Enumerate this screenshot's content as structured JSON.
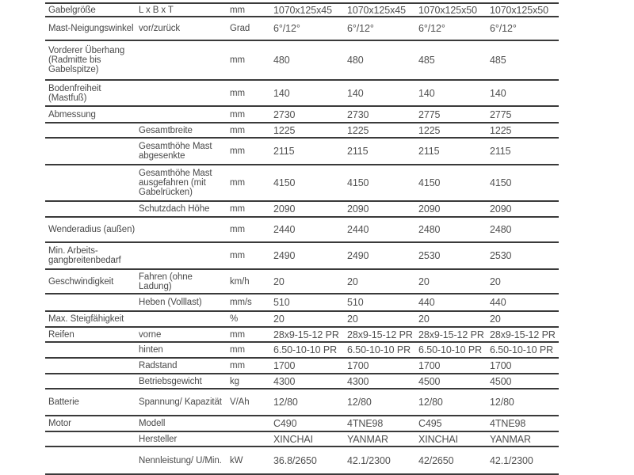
{
  "rows": [
    {
      "label": "Gabelgröße",
      "sub": "L x B x T",
      "unit": "mm",
      "values": [
        "1070x125x45",
        "1070x125x45",
        "1070x125x50",
        "1070x125x50"
      ]
    },
    {
      "label": "Mast-Neigungswinkel",
      "sub": "vor/zurück",
      "unit": "Grad",
      "values": [
        "6°/12°",
        "6°/12°",
        "6°/12°",
        "6°/12°"
      ]
    },
    {
      "label": "Vorderer Überhang (Radmitte bis Gabelspitze)",
      "sub": "",
      "unit": "mm",
      "values": [
        "480",
        "480",
        "485",
        "485"
      ]
    },
    {
      "label": "Bodenfreiheit (Mastfuß)",
      "sub": "",
      "unit": "mm",
      "values": [
        "140",
        "140",
        "140",
        "140"
      ]
    },
    {
      "label": "Abmessung",
      "sub": "",
      "unit": "mm",
      "values": [
        "2730",
        "2730",
        "2775",
        "2775"
      ]
    },
    {
      "label": "",
      "sub": "Gesamtbreite",
      "unit": "mm",
      "values": [
        "1225",
        "1225",
        "1225",
        "1225"
      ]
    },
    {
      "label": "",
      "sub": "Gesamthöhe Mast abgesenkte",
      "unit": "mm",
      "values": [
        "2115",
        "2115",
        "2115",
        "2115"
      ]
    },
    {
      "label": "",
      "sub": "Gesamthöhe Mast ausgefahren (mit Gabelrücken)",
      "unit": "mm",
      "values": [
        "4150",
        "4150",
        "4150",
        "4150"
      ]
    },
    {
      "label": "",
      "sub": "Schutzdach Höhe",
      "unit": "mm",
      "values": [
        "2090",
        "2090",
        "2090",
        "2090"
      ]
    },
    {
      "label": "Wenderadius (außen)",
      "sub": "",
      "unit": "mm",
      "values": [
        "2440",
        "2440",
        "2480",
        "2480"
      ]
    },
    {
      "label": "Min. Arbeits-gangbreitenbedarf",
      "sub": "",
      "unit": "mm",
      "values": [
        "2490",
        "2490",
        "2530",
        "2530"
      ]
    },
    {
      "label": "Geschwindigkeit",
      "sub": "Fahren (ohne Ladung)",
      "unit": "km/h",
      "values": [
        "20",
        "20",
        "20",
        "20"
      ]
    },
    {
      "label": "",
      "sub": "Heben (Volllast)",
      "unit": "mm/s",
      "values": [
        "510",
        "510",
        "440",
        "440"
      ]
    },
    {
      "label": "Max. Steigfähigkeit",
      "sub": "",
      "unit": "%",
      "values": [
        "20",
        "20",
        "20",
        "20"
      ]
    },
    {
      "label": "Reifen",
      "sub": "vorne",
      "unit": "mm",
      "values": [
        "28x9-15-12 PR",
        "28x9-15-12 PR",
        "28x9-15-12 PR",
        "28x9-15-12 PR"
      ]
    },
    {
      "label": "",
      "sub": "hinten",
      "unit": "mm",
      "values": [
        "6.50-10-10 PR",
        "6.50-10-10 PR",
        "6.50-10-10 PR",
        "6.50-10-10 PR"
      ]
    },
    {
      "label": "",
      "sub": "Radstand",
      "unit": "mm",
      "values": [
        "1700",
        "1700",
        "1700",
        "1700"
      ]
    },
    {
      "label": "",
      "sub": "Betriebsgewicht",
      "unit": "kg",
      "values": [
        "4300",
        "4300",
        "4500",
        "4500"
      ]
    },
    {
      "label": "Batterie",
      "sub": "Spannung/ Kapazität",
      "unit": "V/Ah",
      "values": [
        "12/80",
        "12/80",
        "12/80",
        "12/80"
      ]
    },
    {
      "label": "Motor",
      "sub": "Modell",
      "unit": "",
      "values": [
        "C490",
        "4TNE98",
        "C495",
        "4TNE98"
      ]
    },
    {
      "label": "",
      "sub": "Hersteller",
      "unit": "",
      "values": [
        "XINCHAI",
        "YANMAR",
        "XINCHAI",
        "YANMAR"
      ]
    },
    {
      "label": "",
      "sub": "Nennleistung/ U/Min.",
      "unit": "kW",
      "values": [
        "36.8/2650",
        "42.1/2300",
        "42/2650",
        "42.1/2300"
      ]
    }
  ]
}
